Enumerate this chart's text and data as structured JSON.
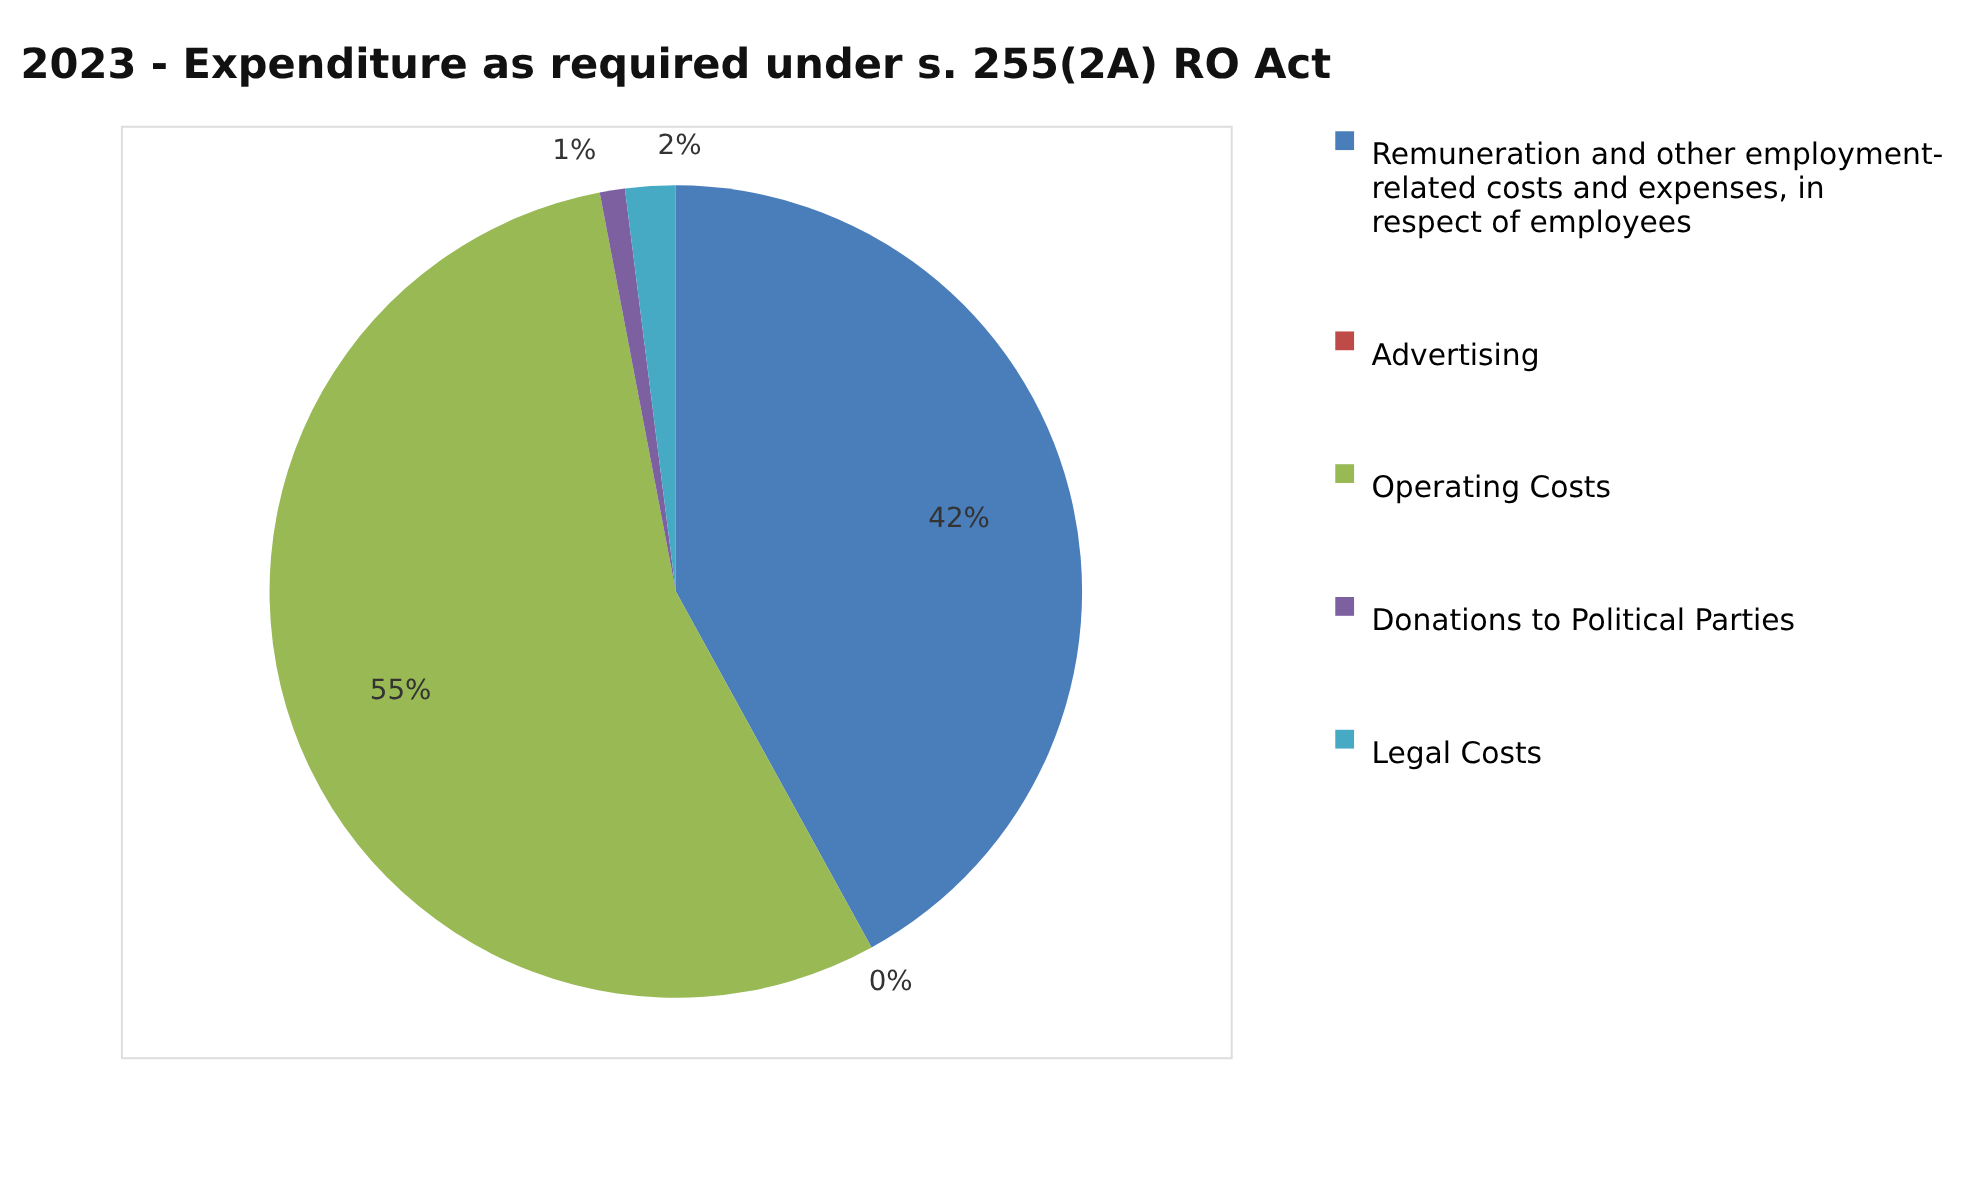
{
  "chart_data": {
    "type": "pie",
    "title": "2023 - Expenditure as required under s. 255(2A) RO Act",
    "categories": [
      "Remuneration and other employment-related costs and expenses, in respect of employees",
      "Advertising",
      "Operating Costs",
      "Donations to Political Parties",
      "Legal Costs"
    ],
    "values": [
      42,
      0,
      55,
      1,
      2
    ],
    "value_labels": [
      "42%",
      "0%",
      "55%",
      "1%",
      "2%"
    ],
    "colors": [
      "#4a7ebb",
      "#be4b48",
      "#98b954",
      "#7d60a0",
      "#46aac5"
    ],
    "legend": "right"
  }
}
